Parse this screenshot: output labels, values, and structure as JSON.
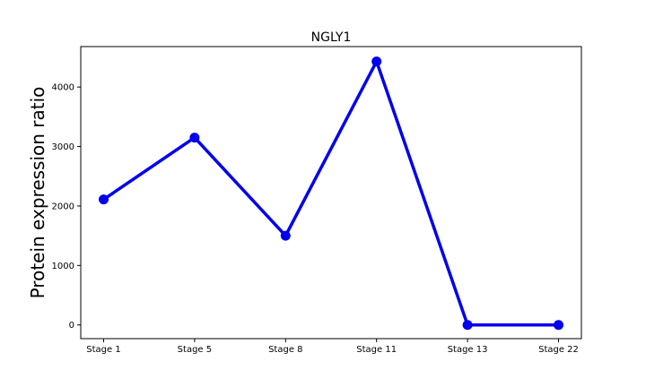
{
  "chart_data": {
    "type": "line",
    "title": "NGLY1",
    "xlabel": "",
    "ylabel": "Protein expression ratio",
    "categories": [
      "Stage 1",
      "Stage 5",
      "Stage 8",
      "Stage 11",
      "Stage 13",
      "Stage 22"
    ],
    "series": [
      {
        "values": [
          2110,
          3150,
          1500,
          4430,
          0,
          0
        ],
        "color": "#0000ee",
        "marker": "circle"
      }
    ],
    "yticks": [
      0,
      1000,
      2000,
      3000,
      4000
    ],
    "ylim": [
      -230,
      4680
    ],
    "grid": false,
    "legend": "none"
  }
}
